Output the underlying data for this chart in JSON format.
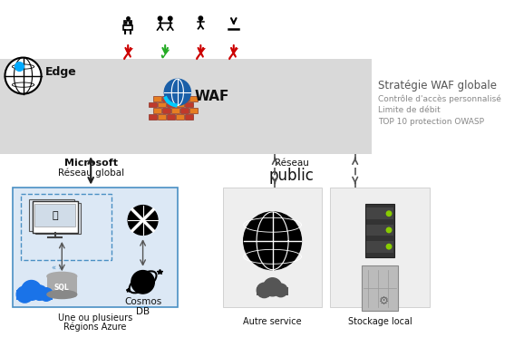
{
  "title": "Stratégie WAF globale",
  "subtitle_lines": [
    "Contrôle d'accès personnalisé",
    "Limite de débit",
    "TOP 10 protection OWASP"
  ],
  "edge_label": "Edge",
  "microsoft_label1": "Microsoft",
  "microsoft_label2": "Réseau global",
  "reseau_label1": "Réseau",
  "reseau_label2": "public",
  "waf_label": "WAF",
  "azure_label1": "Une ou plusieurs",
  "azure_label2": "Régions Azure",
  "autre_service_label": "Autre service",
  "stockage_label": "Stockage local",
  "cosmos_label": "Cosmos\nDB",
  "waf_band_color": "#d9d9d9",
  "azure_box_color": "#dce8f5",
  "azure_box_border": "#4a90c4",
  "autre_box_color": "#eeeeee",
  "stockage_box_color": "#eeeeee",
  "cross_color": "#cc0000",
  "check_color": "#22aa22",
  "arrow_color": "#222222",
  "dashed_arrow_color": "#555555",
  "text_color": "#111111",
  "light_text": "#888888",
  "title_text_color": "#555555"
}
